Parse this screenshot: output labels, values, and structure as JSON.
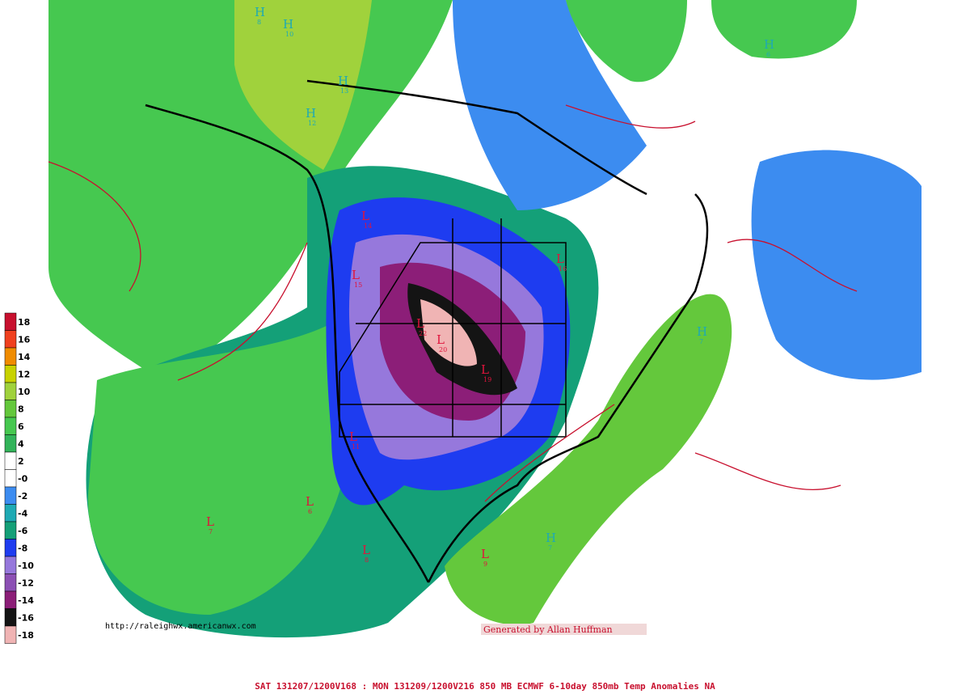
{
  "legend": [
    {
      "label": "18",
      "color": "#c8102e"
    },
    {
      "label": "16",
      "color": "#f0401e"
    },
    {
      "label": "14",
      "color": "#f08c00"
    },
    {
      "label": "12",
      "color": "#c8d200"
    },
    {
      "label": "10",
      "color": "#a0d23c"
    },
    {
      "label": "8",
      "color": "#64c83c"
    },
    {
      "label": "6",
      "color": "#46c850"
    },
    {
      "label": "4",
      "color": "#32b45a"
    },
    {
      "label": "2",
      "color": "#ffffff"
    },
    {
      "label": "-0",
      "color": "#ffffff"
    },
    {
      "label": "-2",
      "color": "#3c8cf0"
    },
    {
      "label": "-4",
      "color": "#1eaab4"
    },
    {
      "label": "-6",
      "color": "#14a078"
    },
    {
      "label": "-8",
      "color": "#1e3cf0"
    },
    {
      "label": "-10",
      "color": "#9678dc"
    },
    {
      "label": "-12",
      "color": "#8c50b4"
    },
    {
      "label": "-14",
      "color": "#8c1e78"
    },
    {
      "label": "-16",
      "color": "#141414"
    },
    {
      "label": "-18",
      "color": "#f0b4b4"
    }
  ],
  "centers": [
    {
      "letter": "H",
      "value": "8"
    },
    {
      "letter": "H",
      "value": "10"
    },
    {
      "letter": "H",
      "value": "13"
    },
    {
      "letter": "H",
      "value": "12"
    },
    {
      "letter": "H",
      "value": "6"
    },
    {
      "letter": "H",
      "value": "7"
    },
    {
      "letter": "H",
      "value": "7"
    },
    {
      "letter": "L",
      "value": "14"
    },
    {
      "letter": "L",
      "value": "15"
    },
    {
      "letter": "L",
      "value": "22"
    },
    {
      "letter": "L",
      "value": "20"
    },
    {
      "letter": "L",
      "value": "19"
    },
    {
      "letter": "L",
      "value": "16"
    },
    {
      "letter": "L",
      "value": "11"
    },
    {
      "letter": "L",
      "value": "9"
    },
    {
      "letter": "L",
      "value": "7"
    },
    {
      "letter": "L",
      "value": "8"
    },
    {
      "letter": "L",
      "value": "6"
    }
  ],
  "url": "http://raleighwx.americanwx.com",
  "credit": "Generated by Allan Huffman",
  "footer": "SAT 131207/1200V168 : MON 131209/1200V216  850 MB ECMWF 6-10day 850mb Temp Anomalies NA"
}
